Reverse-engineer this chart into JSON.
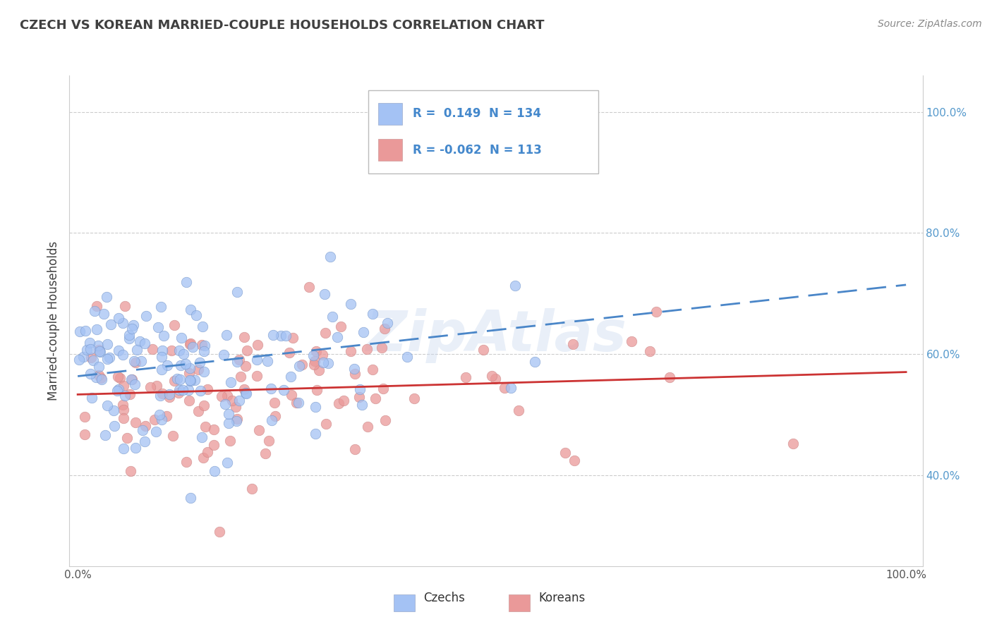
{
  "title": "CZECH VS KOREAN MARRIED-COUPLE HOUSEHOLDS CORRELATION CHART",
  "source": "Source: ZipAtlas.com",
  "ylabel": "Married-couple Households",
  "r_czech": 0.149,
  "n_czech": 134,
  "r_korean": -0.062,
  "n_korean": 113,
  "blue_color": "#a4c2f4",
  "pink_color": "#ea9999",
  "blue_line_color": "#4a86c8",
  "pink_line_color": "#cc3333",
  "background_color": "#ffffff",
  "grid_color": "#cccccc",
  "title_color": "#404040",
  "source_color": "#888888",
  "legend_r_color": "#4488cc",
  "axis_tick_color": "#5599cc",
  "watermark": "ZipAtlas",
  "xlim": [
    -0.01,
    1.02
  ],
  "ylim": [
    0.25,
    1.06
  ],
  "y_ticks": [
    0.4,
    0.6,
    0.8,
    1.0
  ],
  "y_tick_labels": [
    "40.0%",
    "60.0%",
    "80.0%",
    "100.0%"
  ]
}
